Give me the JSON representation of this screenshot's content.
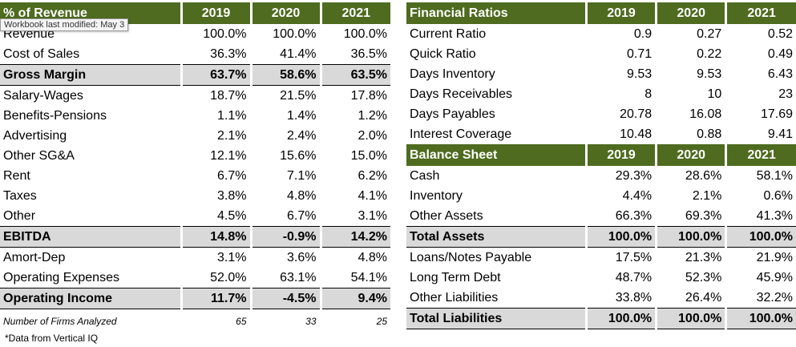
{
  "tooltip": "Workbook last modified: May 3",
  "left_table": {
    "header": [
      "% of Revenue",
      "2019",
      "2020",
      "2021"
    ],
    "rows": [
      {
        "label": "Revenue",
        "values": [
          "100.0%",
          "100.0%",
          "100.0%"
        ],
        "bold": false
      },
      {
        "label": "Cost of Sales",
        "values": [
          "36.3%",
          "41.4%",
          "36.5%"
        ],
        "bold": false
      },
      {
        "label": "Gross Margin",
        "values": [
          "63.7%",
          "58.6%",
          "63.5%"
        ],
        "bold": true
      },
      {
        "label": "Salary-Wages",
        "values": [
          "18.7%",
          "21.5%",
          "17.8%"
        ],
        "bold": false
      },
      {
        "label": "Benefits-Pensions",
        "values": [
          "1.1%",
          "1.4%",
          "1.2%"
        ],
        "bold": false
      },
      {
        "label": "Advertising",
        "values": [
          "2.1%",
          "2.4%",
          "2.0%"
        ],
        "bold": false
      },
      {
        "label": "Other SG&A",
        "values": [
          "12.1%",
          "15.6%",
          "15.0%"
        ],
        "bold": false
      },
      {
        "label": "Rent",
        "values": [
          "6.7%",
          "7.1%",
          "6.2%"
        ],
        "bold": false
      },
      {
        "label": "Taxes",
        "values": [
          "3.8%",
          "4.8%",
          "4.1%"
        ],
        "bold": false
      },
      {
        "label": "Other",
        "values": [
          "4.5%",
          "6.7%",
          "3.1%"
        ],
        "bold": false
      },
      {
        "label": "EBITDA",
        "values": [
          "14.8%",
          "-0.9%",
          "14.2%"
        ],
        "bold": true
      },
      {
        "label": "Amort-Dep",
        "values": [
          "3.1%",
          "3.6%",
          "4.8%"
        ],
        "bold": false
      },
      {
        "label": "Operating Expenses",
        "values": [
          "52.0%",
          "63.1%",
          "54.1%"
        ],
        "bold": false
      },
      {
        "label": "Operating Income",
        "values": [
          "11.7%",
          "-4.5%",
          "9.4%"
        ],
        "bold": true
      }
    ],
    "footer": {
      "label": "Number of Firms Analyzed",
      "values": [
        "65",
        "33",
        "25"
      ]
    }
  },
  "ratios_table": {
    "header": [
      "Financial Ratios",
      "2019",
      "2020",
      "2021"
    ],
    "rows": [
      {
        "label": "Current Ratio",
        "values": [
          "0.9",
          "0.27",
          "0.52"
        ]
      },
      {
        "label": "Quick Ratio",
        "values": [
          "0.71",
          "0.22",
          "0.49"
        ]
      },
      {
        "label": "Days Inventory",
        "values": [
          "9.53",
          "9.53",
          "6.43"
        ]
      },
      {
        "label": "Days Receivables",
        "values": [
          "8",
          "10",
          "23"
        ]
      },
      {
        "label": "Days Payables",
        "values": [
          "20.78",
          "16.08",
          "17.69"
        ]
      },
      {
        "label": "Interest Coverage",
        "values": [
          "10.48",
          "0.88",
          "9.41"
        ]
      }
    ]
  },
  "balance_table": {
    "header": [
      "Balance Sheet",
      "2019",
      "2020",
      "2021"
    ],
    "rows": [
      {
        "label": "Cash",
        "values": [
          "29.3%",
          "28.6%",
          "58.1%"
        ],
        "bold": false
      },
      {
        "label": "Inventory",
        "values": [
          "4.4%",
          "2.1%",
          "0.6%"
        ],
        "bold": false
      },
      {
        "label": "Other Assets",
        "values": [
          "66.3%",
          "69.3%",
          "41.3%"
        ],
        "bold": false
      },
      {
        "label": "Total Assets",
        "values": [
          "100.0%",
          "100.0%",
          "100.0%"
        ],
        "bold": true
      },
      {
        "label": "Loans/Notes Payable",
        "values": [
          "17.5%",
          "21.3%",
          "21.9%"
        ],
        "bold": false
      },
      {
        "label": "Long Term Debt",
        "values": [
          "48.7%",
          "52.3%",
          "45.9%"
        ],
        "bold": false
      },
      {
        "label": "Other Liabilities",
        "values": [
          "33.8%",
          "26.4%",
          "32.2%"
        ],
        "bold": false
      },
      {
        "label": "Total Liabilities",
        "values": [
          "100.0%",
          "100.0%",
          "100.0%"
        ],
        "bold": true
      }
    ]
  },
  "note": "*Data from Vertical IQ",
  "colors": {
    "header_bg": "#4e6b1f",
    "header_text": "#ffffff",
    "highlight_bg": "#d9d9d9"
  }
}
